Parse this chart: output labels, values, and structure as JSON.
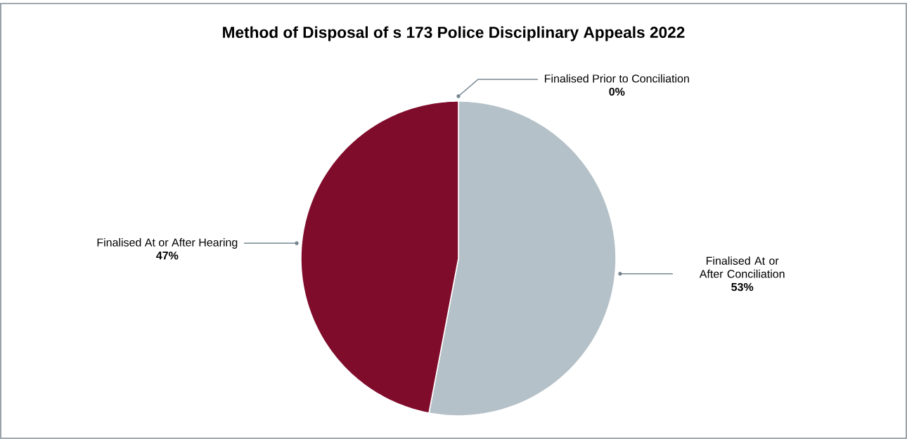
{
  "chart_data": {
    "type": "pie",
    "title": "Method of Disposal of s 173 Police Disciplinary Appeals 2022",
    "categories": [
      "Finalised Prior to Conciliation",
      "Finalised At or After Conciliation",
      "Finalised At or After Hearing"
    ],
    "values": [
      0,
      53,
      47
    ],
    "value_labels": [
      "0%",
      "53%",
      "47%"
    ],
    "colors": [
      "#5e6a71",
      "#b5c1c8",
      "#800c2c"
    ]
  }
}
